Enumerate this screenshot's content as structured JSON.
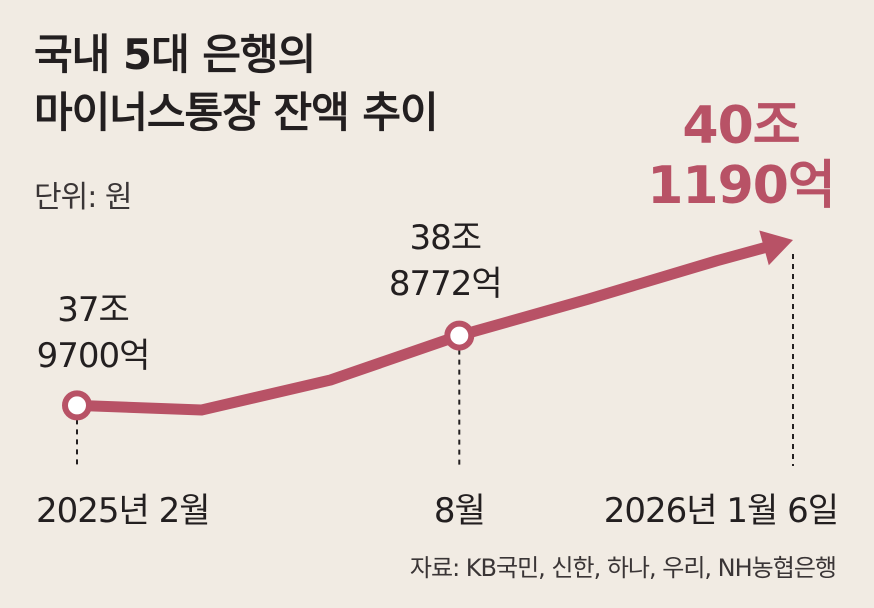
{
  "title": {
    "line1": "국내 5대 은행의",
    "line2": "마이너스통장 잔액 추이"
  },
  "unit_label": "단위: 원",
  "source": "자료: KB국민, 신한, 하나, 우리, NH농협은행",
  "colors": {
    "line": "#b85266",
    "highlight_text": "#b85266",
    "background": "#f1ebe3",
    "text": "#231f20"
  },
  "chart_data": {
    "type": "line",
    "title": "국내 5대 은행의 마이너스통장 잔액 추이",
    "unit": "원",
    "x_tick_labels": [
      "2025년 2월",
      "8월",
      "2026년 1월 6일"
    ],
    "points": [
      {
        "x": "2025-02",
        "y": 379700
      },
      {
        "x": "2025-04",
        "y": 379100
      },
      {
        "x": "2025-06",
        "y": 383000
      },
      {
        "x": "2025-08",
        "y": 388772
      },
      {
        "x": "2025-10",
        "y": 393500
      },
      {
        "x": "2025-12",
        "y": 398500
      },
      {
        "x": "2026-01-06",
        "y": 401190
      }
    ],
    "y_unit": "억 원",
    "annotations": [
      {
        "index": 0,
        "line1": "37조",
        "line2": "9700억"
      },
      {
        "index": 3,
        "line1": "38조",
        "line2": "8772억"
      },
      {
        "index": 6,
        "line1": "40조",
        "line2": "1190억",
        "highlight": true
      }
    ],
    "markers_at": [
      0,
      3
    ],
    "arrow_at_end": true
  }
}
